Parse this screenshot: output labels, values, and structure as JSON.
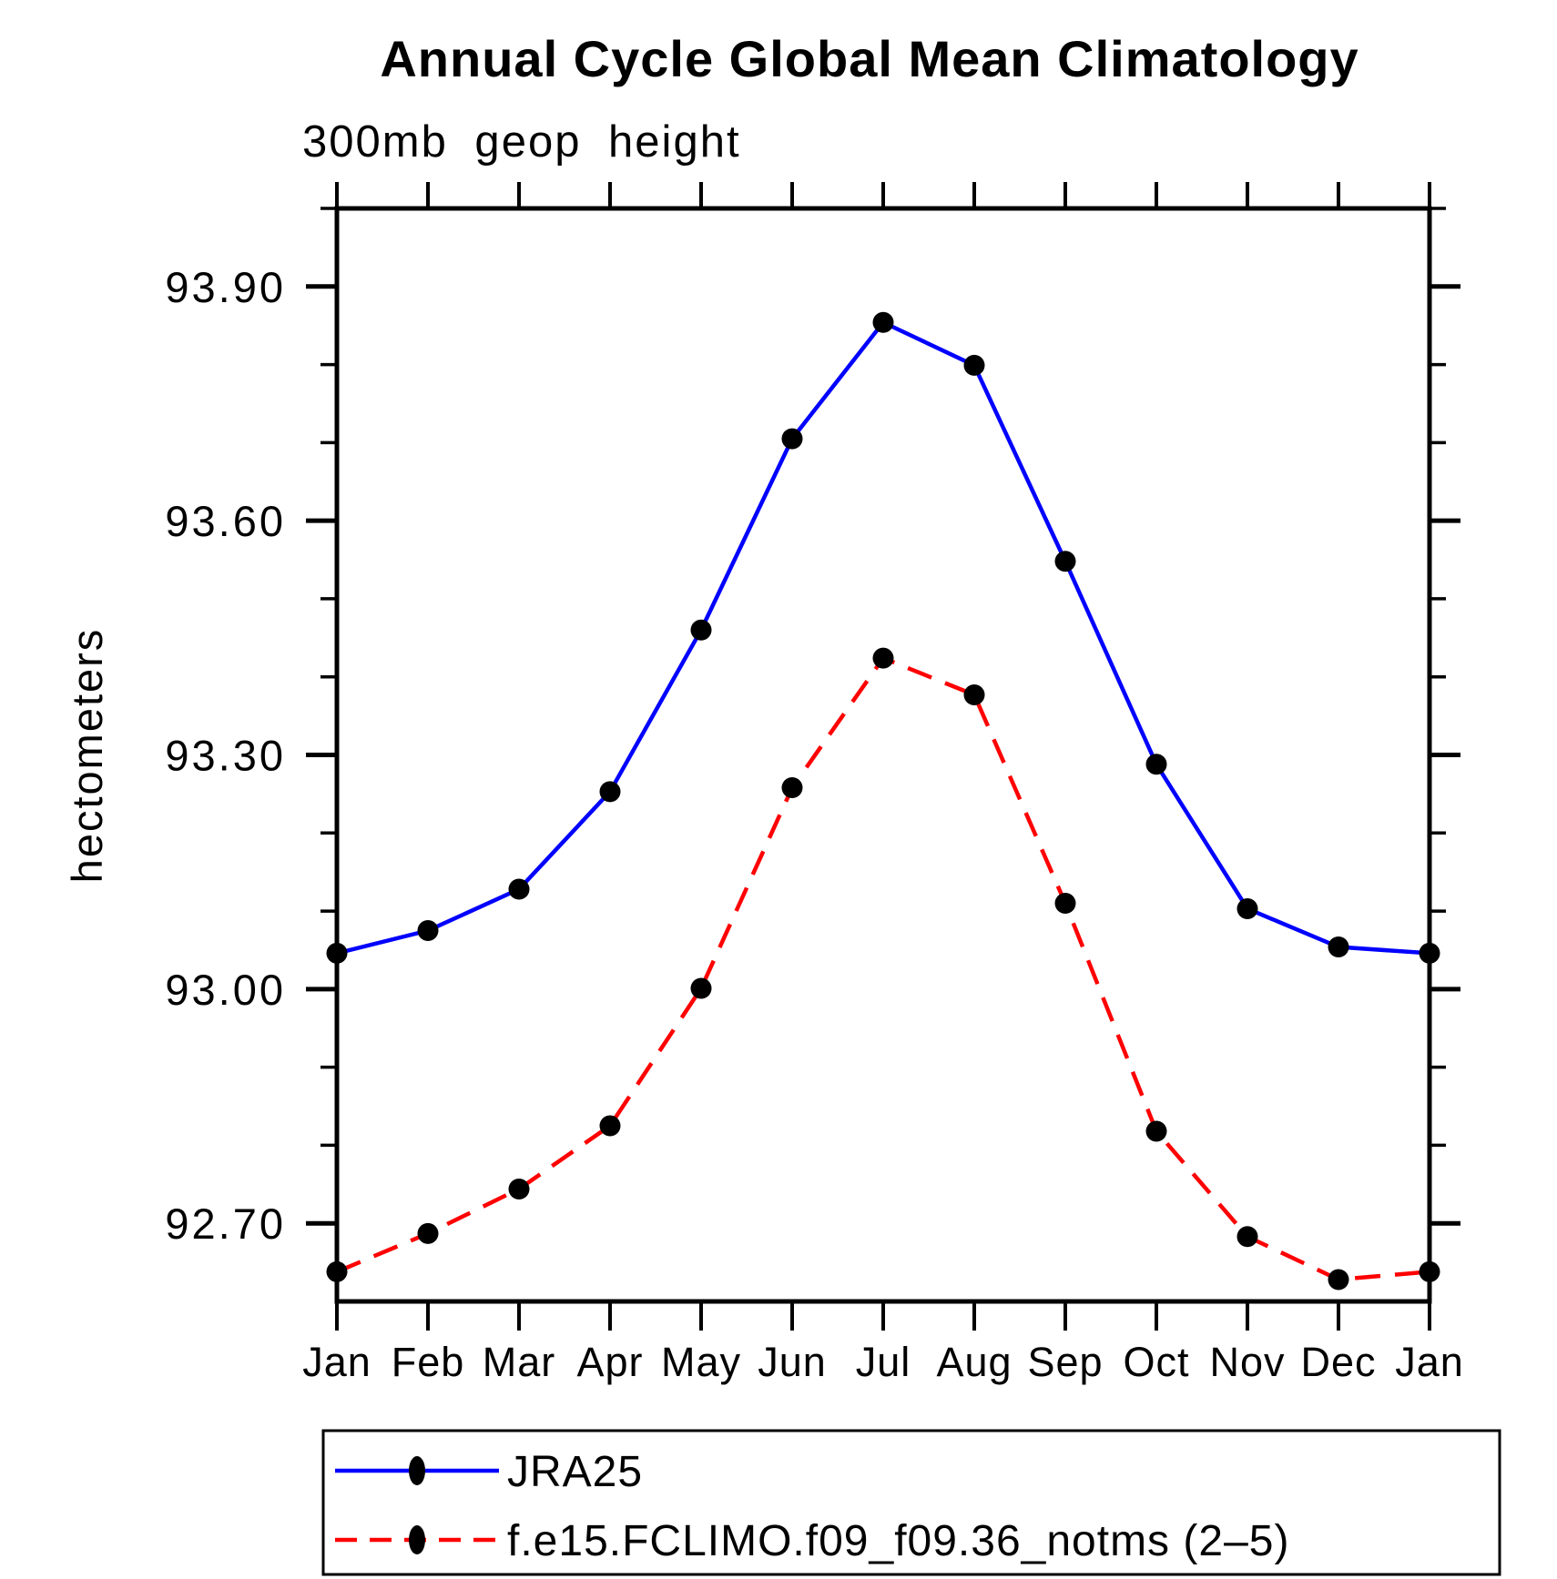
{
  "page": {
    "background_color": "#ffffff",
    "axis_color": "#000000"
  },
  "chart_data": {
    "type": "line",
    "title": "Annual Cycle Global Mean Climatology",
    "subtitle": "300mb geop height",
    "xlabel": "",
    "ylabel": "hectometers",
    "categories": [
      "Jan",
      "Feb",
      "Mar",
      "Apr",
      "May",
      "Jun",
      "Jul",
      "Aug",
      "Sep",
      "Oct",
      "Nov",
      "Dec",
      "Jan"
    ],
    "ylim": [
      92.6,
      94.0
    ],
    "ytick_minor_step": 0.1,
    "yticks_major": [
      {
        "value": 92.7,
        "label": "92.70"
      },
      {
        "value": 93.0,
        "label": "93.00"
      },
      {
        "value": 93.3,
        "label": "93.30"
      },
      {
        "value": 93.6,
        "label": "93.60"
      },
      {
        "value": 93.9,
        "label": "93.90"
      }
    ],
    "grid": false,
    "legend_position": "bottom",
    "series": [
      {
        "name": "JRA25",
        "color": "#0000ff",
        "line_style": "solid",
        "marker": "filled-circle",
        "marker_color": "#000000",
        "values": [
          93.046,
          93.075,
          93.128,
          93.253,
          93.46,
          93.705,
          93.854,
          93.799,
          93.548,
          93.288,
          93.103,
          93.054,
          93.046
        ]
      },
      {
        "name": "f.e15.FCLIMO.f09_f09.36_notms (2–5)",
        "color": "#ff0000",
        "line_style": "dashed",
        "marker": "filled-circle",
        "marker_color": "#000000",
        "values": [
          92.638,
          92.687,
          92.744,
          92.825,
          93.001,
          93.258,
          93.424,
          93.377,
          93.11,
          92.818,
          92.683,
          92.628,
          92.638
        ]
      }
    ]
  }
}
